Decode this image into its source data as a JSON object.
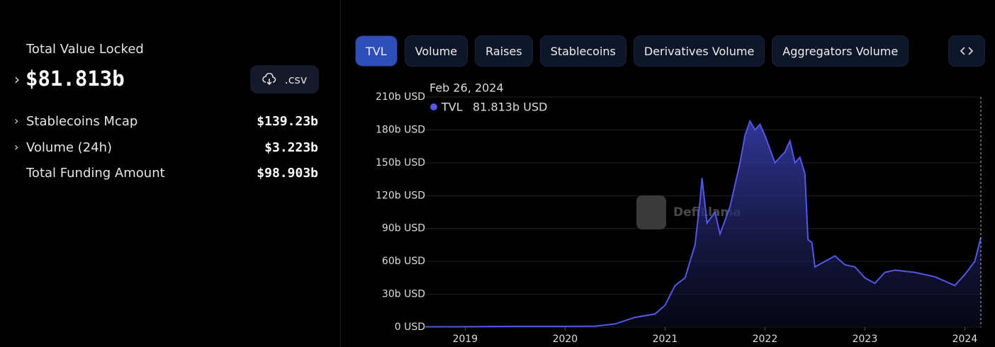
{
  "sidebar": {
    "tvl_label": "Total Value Locked",
    "tvl_value": "$81.813b",
    "csv": ".csv",
    "stats": [
      {
        "label": "Stablecoins Mcap",
        "value": "$139.23b"
      },
      {
        "label": "Volume (24h)",
        "value": "$3.223b"
      },
      {
        "label": "Total Funding Amount",
        "value": "$98.903b"
      }
    ]
  },
  "tabs": [
    "TVL",
    "Volume",
    "Raises",
    "Stablecoins",
    "Derivatives Volume",
    "Aggregators Volume"
  ],
  "chart_data": {
    "type": "area",
    "watermark": "DefiLlama",
    "tooltip": {
      "date": "Feb 26, 2024",
      "series": "TVL",
      "value": "81.813b USD"
    },
    "x": [
      2018.6,
      2019,
      2019.5,
      2020,
      2020.3,
      2020.5,
      2020.7,
      2020.9,
      2021,
      2021.1,
      2021.2,
      2021.3,
      2021.35,
      2021.37,
      2021.42,
      2021.5,
      2021.55,
      2021.65,
      2021.75,
      2021.8,
      2021.85,
      2021.9,
      2021.95,
      2022.0,
      2022.1,
      2022.2,
      2022.25,
      2022.3,
      2022.35,
      2022.4,
      2022.43,
      2022.47,
      2022.5,
      2022.6,
      2022.7,
      2022.8,
      2022.9,
      2023.0,
      2023.1,
      2023.2,
      2023.3,
      2023.5,
      2023.7,
      2023.9,
      2024.0,
      2024.1,
      2024.16
    ],
    "series": [
      {
        "name": "TVL",
        "color": "#5257e8",
        "values": [
          0.3,
          0.4,
          0.7,
          0.7,
          0.9,
          3,
          9,
          12,
          20,
          38,
          45,
          75,
          115,
          136,
          95,
          105,
          85,
          110,
          150,
          175,
          188,
          180,
          185,
          175,
          150,
          160,
          170,
          150,
          155,
          140,
          80,
          77,
          55,
          60,
          65,
          57,
          55,
          45,
          40,
          50,
          52,
          50,
          46,
          38,
          48,
          60,
          81.813
        ]
      }
    ],
    "xlim": [
      2018.6,
      2024.16
    ],
    "xticks": [
      2019,
      2020,
      2021,
      2022,
      2023,
      2024
    ],
    "ylim": [
      0,
      210
    ],
    "yticks": [
      {
        "value": 0,
        "label": "0 USD"
      },
      {
        "value": 30,
        "label": "30b USD"
      },
      {
        "value": 60,
        "label": "60b USD"
      },
      {
        "value": 90,
        "label": "90b USD"
      },
      {
        "value": 120,
        "label": "120b USD"
      },
      {
        "value": 150,
        "label": "150b USD"
      },
      {
        "value": 180,
        "label": "180b USD"
      },
      {
        "value": 210,
        "label": "210b USD"
      }
    ],
    "grid": true
  }
}
